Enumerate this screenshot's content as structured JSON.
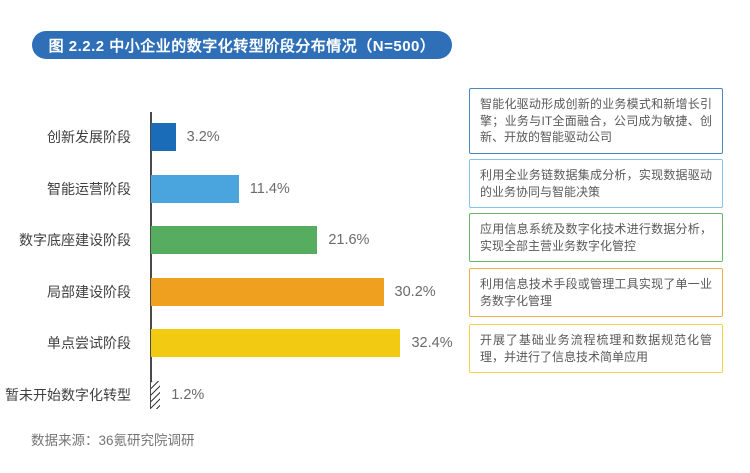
{
  "banner": {
    "title": "图 2.2.2 中小企业的数字化转型阶段分布情况（N=500）",
    "bg_color": "#2e6fb7",
    "text_color": "#ffffff"
  },
  "chart_data": {
    "type": "bar",
    "orientation": "horizontal",
    "title": "图 2.2.2 中小企业的数字化转型阶段分布情况（N=500）",
    "categories": [
      "创新发展阶段",
      "智能运营阶段",
      "数字底座建设阶段",
      "局部建设阶段",
      "单点尝试阶段",
      "暂未开始数字化转型"
    ],
    "values": [
      3.2,
      11.4,
      21.6,
      30.2,
      32.4,
      1.2
    ],
    "value_labels": [
      "3.2%",
      "11.4%",
      "21.6%",
      "30.2%",
      "32.4%",
      "1.2%"
    ],
    "bar_colors": [
      "#1b6cb8",
      "#4aa4de",
      "#57ad5f",
      "#f0a01f",
      "#f3ca12",
      "hatch"
    ],
    "xlabel": "",
    "ylabel": "",
    "xlim": [
      0,
      35
    ],
    "grid": false,
    "legend": "none"
  },
  "annotations": [
    {
      "text": "智能化驱动形成创新的业务模式和新增长引擎；业务与IT全面融合，公司成为敏捷、创新、开放的智能驱动公司",
      "border_color": "#4b86c5"
    },
    {
      "text": "利用全业务链数据集成分析，实现数据驱动的业务协同与智能决策",
      "border_color": "#85c3e8"
    },
    {
      "text": "应用信息系统及数字化技术进行数据分析，实现全部主营业务数字化管控",
      "border_color": "#62ba6c"
    },
    {
      "text": "利用信息技术手段或管理工具实现了单一业务数字化管理",
      "border_color": "#f0b050"
    },
    {
      "text": "开展了基础业务流程梳理和数据规范化管理，并进行了信息技术简单应用",
      "border_color": "#f2d44c"
    }
  ],
  "footer": {
    "source": "数据来源：36氪研究院调研"
  }
}
